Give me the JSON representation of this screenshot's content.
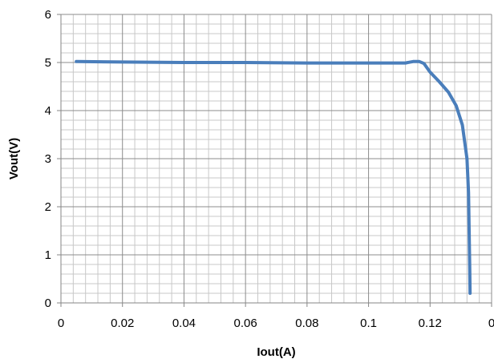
{
  "chart_data": {
    "type": "line",
    "xlabel": "Iout(A)",
    "ylabel": "Vout(V)",
    "xlim": [
      0,
      0.14
    ],
    "ylim": [
      0,
      6
    ],
    "x_tick_labels": [
      "0",
      "0.02",
      "0.04",
      "0.06",
      "0.08",
      "0.1",
      "0.12",
      "0"
    ],
    "y_tick_labels": [
      "0",
      "1",
      "2",
      "3",
      "4",
      "5",
      "6"
    ],
    "grid": true,
    "legend": "none",
    "series": [
      {
        "color": "#4a7ebb",
        "x": [
          0.005,
          0.02,
          0.04,
          0.06,
          0.08,
          0.1,
          0.108,
          0.112,
          0.1145,
          0.1165,
          0.118,
          0.12,
          0.123,
          0.126,
          0.1285,
          0.1305,
          0.132,
          0.1325,
          0.1327,
          0.1329,
          0.133
        ],
        "y": [
          5.02,
          5.01,
          5.0,
          5.0,
          4.99,
          4.99,
          4.99,
          4.99,
          5.02,
          5.02,
          4.98,
          4.8,
          4.6,
          4.38,
          4.1,
          3.7,
          3.0,
          2.3,
          1.5,
          0.7,
          0.2
        ]
      }
    ]
  }
}
